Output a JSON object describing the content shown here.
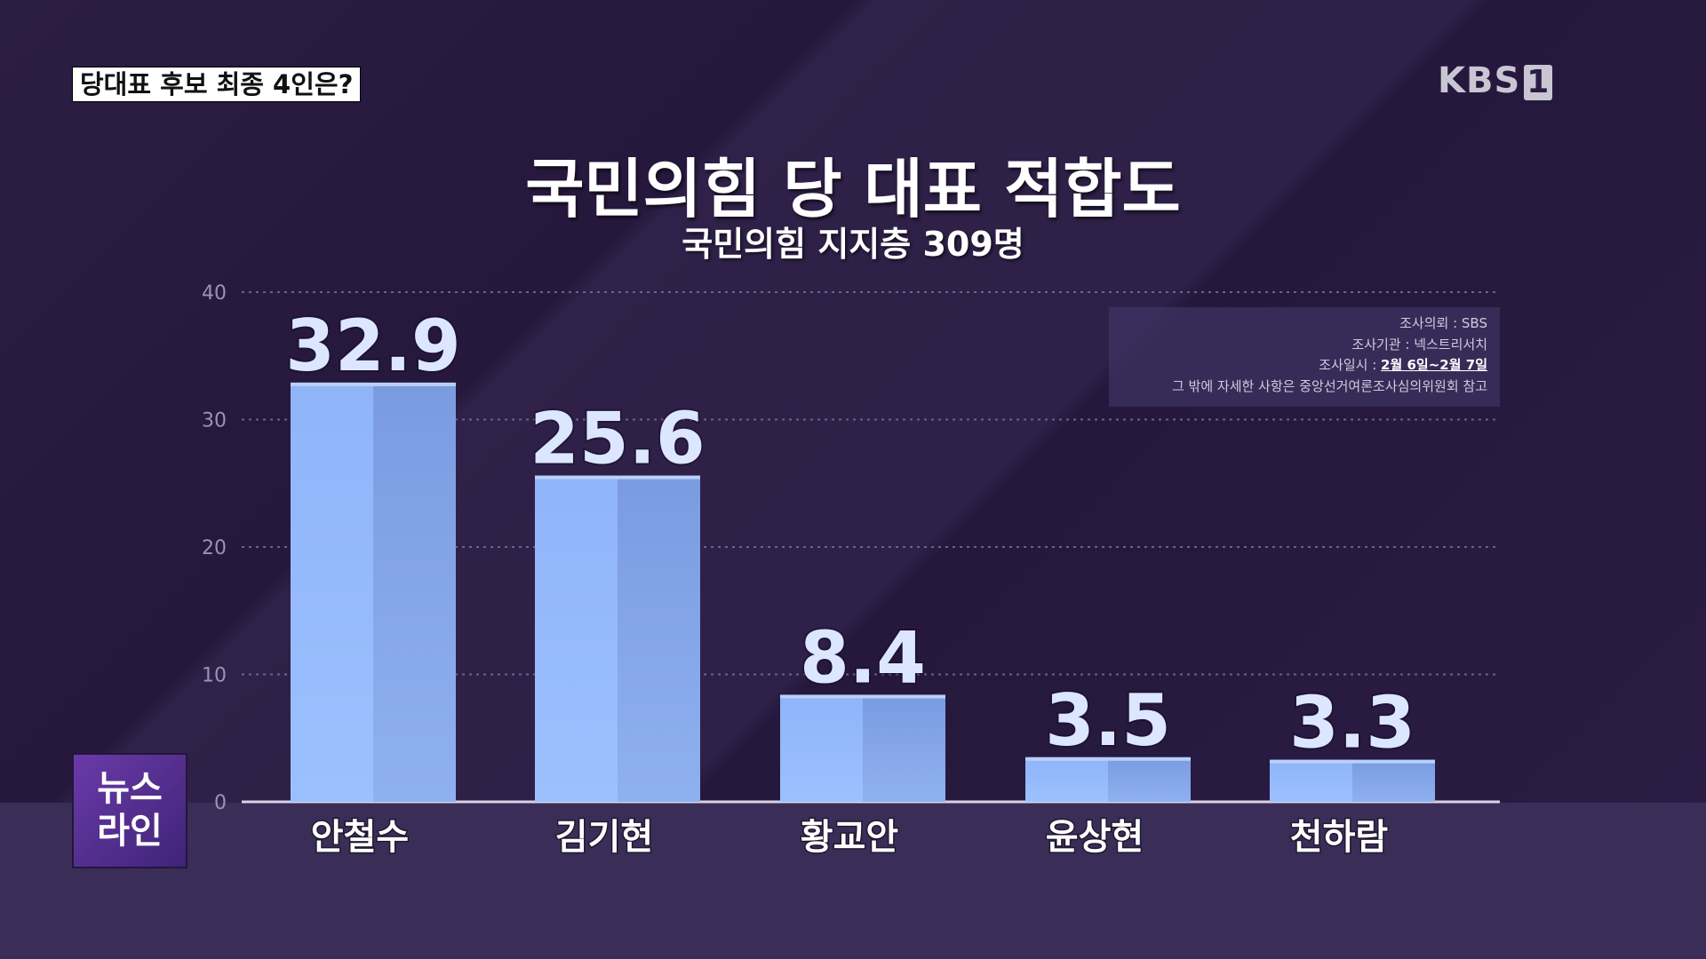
{
  "header": {
    "topic": "당대표 후보 최종 4인은?",
    "logo_text": "KBS",
    "logo_num": "1"
  },
  "info_box": {
    "line1": "조사의뢰 : SBS",
    "line2": "조사기관 : 넥스트리서치",
    "line3_prefix": "조사일시 : ",
    "line3_dates": "2월 6일~2월 7일",
    "line4": "그 밖에 자세한 사항은 중앙선거여론조사심의위원회 참고"
  },
  "badge": {
    "line1": "뉴스",
    "line2": "라인"
  },
  "colors": {
    "bar_left": "#8fb4f8",
    "bar_right": "#7a9be0",
    "bar_top": "#b9d0fb",
    "value_label": "#dce6ff",
    "axis_tick": "#9c93b3"
  },
  "chart_data": {
    "type": "bar",
    "title": "국민의힘 당 대표 적합도",
    "subtitle": "국민의힘 지지층 309명",
    "categories": [
      "안철수",
      "김기현",
      "황교안",
      "윤상현",
      "천하람"
    ],
    "values": [
      32.9,
      25.6,
      8.4,
      3.5,
      3.3
    ],
    "ylim": [
      0,
      40
    ],
    "yticks": [
      0,
      10,
      20,
      30,
      40
    ],
    "grid": true,
    "xlabel": "",
    "ylabel": ""
  }
}
